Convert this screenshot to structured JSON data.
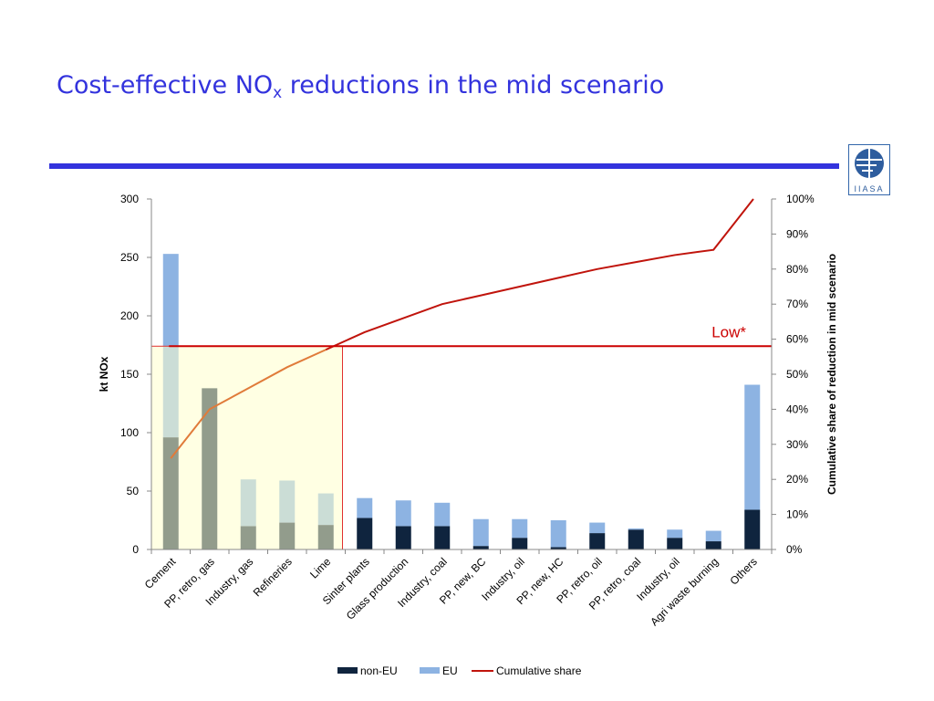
{
  "slide": {
    "title_main": "Cost-effective NO",
    "title_sub": "x",
    "title_rest": " reductions in the mid scenario",
    "logo_text": "IIASA",
    "accent_color": "#3333dd"
  },
  "chart_data": {
    "type": "bar",
    "stacked": true,
    "categories": [
      "Cement",
      "PP, retro, gas",
      "Industry, gas",
      "Refineries",
      "Lime",
      "Sinter plants",
      "Glass production",
      "Industry, coal",
      "PP, new, BC",
      "Industry, oil",
      "PP, new, HC",
      "PP, retro, oil",
      "PP, retro, coal",
      "Industry, oil",
      "Agri waste burning",
      "Others"
    ],
    "series": [
      {
        "name": "non-EU",
        "color": "#0f243e",
        "values": [
          96,
          138,
          20,
          23,
          21,
          27,
          20,
          20,
          3,
          10,
          2,
          14,
          17,
          10,
          7,
          34
        ]
      },
      {
        "name": "EU",
        "color": "#8db3e2",
        "values": [
          157,
          0,
          40,
          36,
          27,
          17,
          22,
          20,
          23,
          16,
          23,
          9,
          1,
          7,
          9,
          107
        ]
      }
    ],
    "line_series": {
      "name": "Cumulative share",
      "color": "#c0140c",
      "axis": "right",
      "values": [
        26,
        40,
        46,
        52,
        57,
        62,
        66,
        70,
        72.5,
        75,
        77.5,
        80,
        82,
        84,
        85.5,
        100
      ]
    },
    "ylabel": "kt NOx",
    "ylabel_right": "Cumulative share of reduction in mid scenario",
    "ylim": [
      0,
      300
    ],
    "yticks": [
      "0",
      "50",
      "100",
      "150",
      "200",
      "250",
      "300"
    ],
    "ylim_right": [
      0,
      100
    ],
    "yticks_right": [
      "0%",
      "10%",
      "20%",
      "30%",
      "40%",
      "50%",
      "60%",
      "70%",
      "80%",
      "90%",
      "100%"
    ],
    "legend_position": "bottom",
    "grid": false,
    "annotation": {
      "label": "Low*",
      "level_percent": 58,
      "color": "#cc0000",
      "highlight_categories": 5,
      "highlight_color": "#ffffcc"
    }
  }
}
